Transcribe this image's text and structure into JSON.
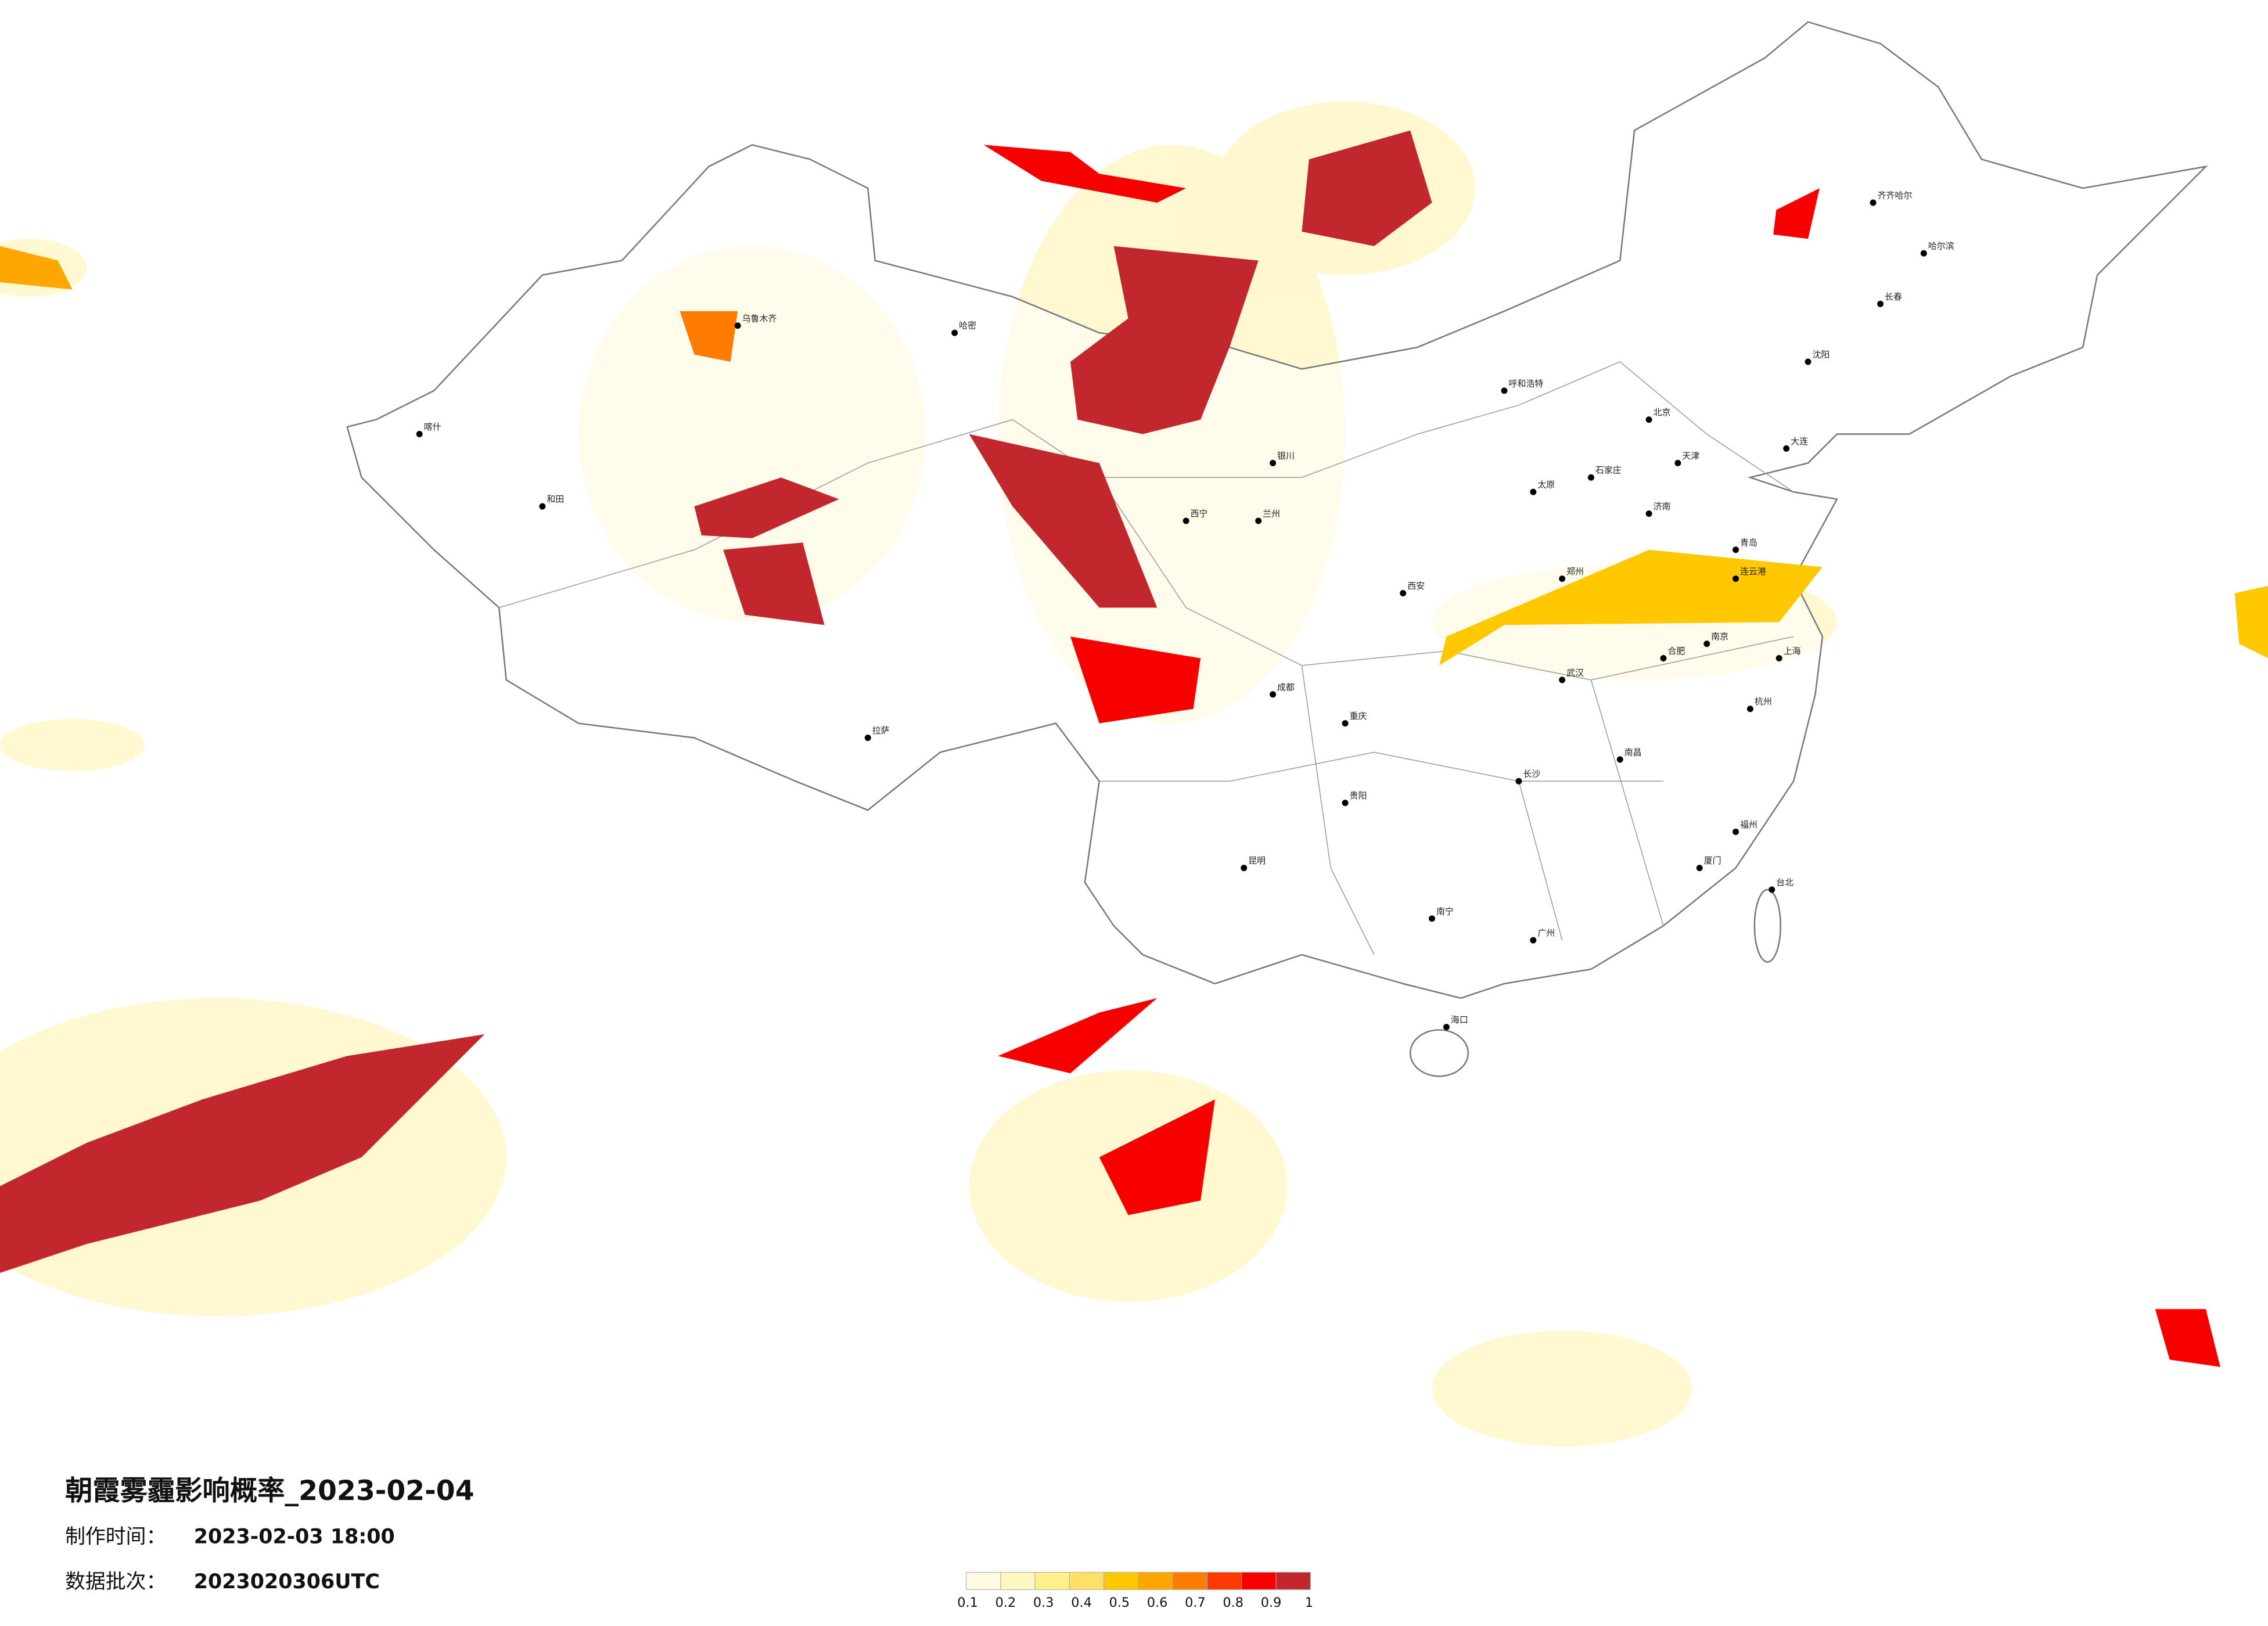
{
  "title": "朝霞雾霾影响概率_2023-02-04",
  "made_time": {
    "label": "制作时间：",
    "value": "2023-02-03 18:00"
  },
  "batch": {
    "label": "数据批次：",
    "value": "2023020306UTC"
  },
  "legend": {
    "ticks": [
      0.1,
      0.2,
      0.3,
      0.4,
      0.5,
      0.6,
      0.7,
      0.8,
      0.9,
      1
    ],
    "colors": [
      "#fffbe3",
      "#fff7c2",
      "#fff08c",
      "#ffe066",
      "#ffc800",
      "#ffa600",
      "#ff7c00",
      "#ff3a00",
      "#f80000",
      "#c1272d"
    ]
  },
  "cities": [
    "北京",
    "天津",
    "石家庄",
    "太原",
    "呼和浩特",
    "沈阳",
    "长春",
    "哈尔滨",
    "济南",
    "郑州",
    "西安",
    "兰州",
    "西宁",
    "银川",
    "乌鲁木齐",
    "拉萨",
    "成都",
    "重庆",
    "贵阳",
    "昆明",
    "南宁",
    "广州",
    "长沙",
    "武汉",
    "南昌",
    "合肥",
    "南京",
    "上海",
    "杭州",
    "福州",
    "台北",
    "海口",
    "喀什",
    "和田",
    "哈密",
    "齐齐哈尔",
    "大连",
    "青岛",
    "连云港",
    "厦门"
  ]
}
